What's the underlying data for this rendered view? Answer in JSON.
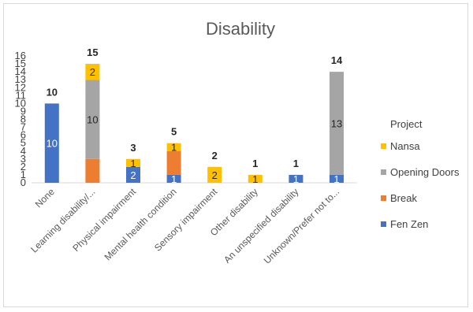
{
  "chart_data": {
    "type": "bar",
    "stacked": true,
    "title": "Disability",
    "xlabel": "",
    "ylabel": "",
    "ylim": [
      0,
      16
    ],
    "y_ticks": [
      0,
      1,
      2,
      3,
      4,
      5,
      6,
      7,
      8,
      9,
      10,
      11,
      12,
      13,
      14,
      15,
      16
    ],
    "grid": false,
    "legend_title": "Project",
    "legend_position": "right",
    "categories": [
      "None",
      "Learning disability/...",
      "Physical impairment",
      "Mental health condition",
      "Sensory impairment",
      "Other disability",
      "An unspecified disability",
      "Unknown/Prefer not to..."
    ],
    "totals": [
      10,
      15,
      3,
      5,
      2,
      1,
      1,
      14
    ],
    "series": [
      {
        "name": "Fen Zen",
        "color": "#4472C4",
        "values": [
          10,
          0,
          2,
          1,
          0,
          0,
          1,
          1
        ],
        "labels": [
          "10",
          "",
          "2",
          "1",
          "",
          "",
          "1",
          "1"
        ],
        "label_color": "#ffffff"
      },
      {
        "name": "Break",
        "color": "#ED7D31",
        "values": [
          0,
          3,
          0,
          3,
          0,
          0,
          0,
          0
        ],
        "labels": [
          "",
          "",
          "",
          "",
          "",
          "",
          "",
          ""
        ],
        "label_color": "#262626"
      },
      {
        "name": "Opening Doors",
        "color": "#A5A5A5",
        "values": [
          0,
          10,
          0,
          0,
          0,
          0,
          0,
          13
        ],
        "labels": [
          "",
          "10",
          "",
          "",
          "",
          "",
          "",
          "13"
        ],
        "label_color": "#262626"
      },
      {
        "name": "Nansa",
        "color": "#FFC000",
        "values": [
          0,
          2,
          1,
          1,
          2,
          1,
          0,
          0
        ],
        "labels": [
          "",
          "2",
          "1",
          "1",
          "2",
          "1",
          "",
          ""
        ],
        "label_color": "#262626"
      }
    ]
  }
}
